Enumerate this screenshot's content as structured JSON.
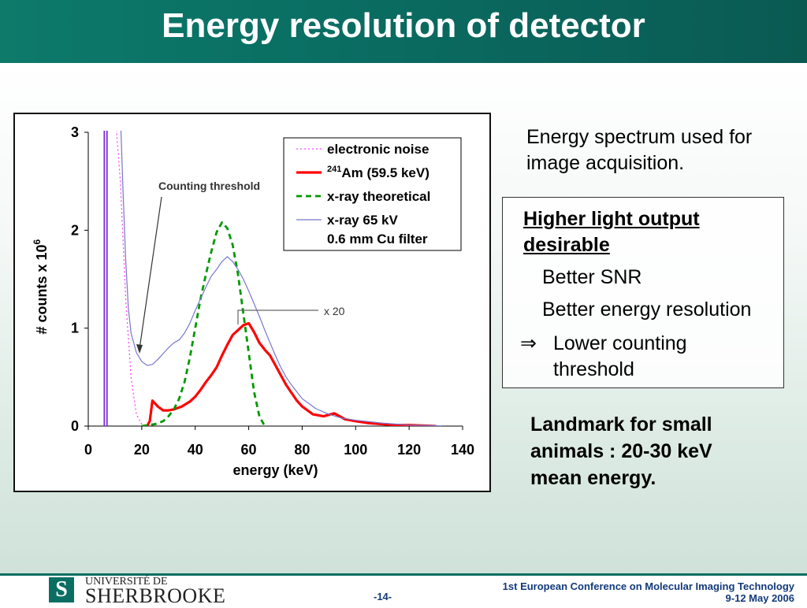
{
  "title": "Energy resolution of detector",
  "caption": "Energy spectrum used for image acquisition.",
  "box": {
    "heading": "Higher light output desirable",
    "item1": "Better SNR",
    "item2": "Better energy resolution",
    "arrow": "⇒",
    "item3a": "Lower counting",
    "item3b": "threshold"
  },
  "landmark": "Landmark for small animals : 20-30 keV mean energy.",
  "footer": {
    "logo_top": "UNIVERSITÉ DE",
    "logo_bottom": "SHERBROOKE",
    "page": "-14-",
    "conference_line1": "1st European Conference on Molecular Imaging Technology",
    "conference_line2": "9-12 May 2006"
  },
  "chart_data": {
    "type": "line",
    "xlabel": "energy (keV)",
    "ylabel": "# counts x 10",
    "ylabel_exp": "6",
    "xlim": [
      0,
      140
    ],
    "ylim": [
      0,
      3
    ],
    "x_ticks": [
      0,
      20,
      40,
      60,
      80,
      100,
      120,
      140
    ],
    "y_ticks": [
      0,
      1,
      2,
      3
    ],
    "legend_position": "top-right",
    "annotations": [
      "Counting threshold",
      "x 20"
    ],
    "series": [
      {
        "name": "electronic noise",
        "color": "#ff44ff",
        "style": "dotted",
        "x": [
          6,
          8,
          10,
          12,
          14,
          16,
          18,
          20,
          22
        ],
        "y": [
          3.2,
          3.2,
          3.2,
          2.5,
          1.3,
          0.5,
          0.12,
          0.02,
          0
        ]
      },
      {
        "name": "Am (59.5 keV)",
        "name_prefix": "241",
        "color": "#ff0000",
        "style": "solid",
        "x": [
          22,
          23,
          24,
          26,
          28,
          30,
          32,
          35,
          38,
          40,
          42,
          44,
          46,
          48,
          50,
          52,
          54,
          56,
          58,
          60,
          62,
          64,
          66,
          68,
          70,
          72,
          74,
          76,
          78,
          80,
          84,
          88,
          92,
          96,
          100,
          105,
          110,
          115,
          120,
          125,
          130
        ],
        "y": [
          0,
          0.05,
          0.26,
          0.2,
          0.16,
          0.16,
          0.17,
          0.2,
          0.25,
          0.3,
          0.37,
          0.45,
          0.52,
          0.6,
          0.72,
          0.83,
          0.93,
          0.98,
          1.03,
          1.05,
          0.96,
          0.85,
          0.78,
          0.72,
          0.62,
          0.52,
          0.42,
          0.34,
          0.26,
          0.2,
          0.12,
          0.1,
          0.13,
          0.07,
          0.05,
          0.03,
          0.02,
          0.01,
          0.01,
          0.005,
          0
        ]
      },
      {
        "name": "x-ray theoretical",
        "color": "#009900",
        "style": "dashed",
        "x": [
          20,
          25,
          28,
          30,
          32,
          34,
          36,
          38,
          40,
          42,
          44,
          46,
          48,
          50,
          52,
          54,
          56,
          58,
          60,
          62,
          64,
          66
        ],
        "y": [
          0,
          0.02,
          0.05,
          0.1,
          0.17,
          0.28,
          0.45,
          0.7,
          1.0,
          1.3,
          1.55,
          1.78,
          1.98,
          2.08,
          2.02,
          1.85,
          1.55,
          1.15,
          0.75,
          0.35,
          0.1,
          0
        ]
      },
      {
        "name": "x-ray 65 kV",
        "name_line2": "0.6 mm  Cu filter",
        "color": "#7777cc",
        "style": "solid",
        "x": [
          12,
          13,
          14,
          15,
          16,
          18,
          20,
          22,
          24,
          26,
          28,
          30,
          32,
          34,
          36,
          38,
          40,
          42,
          44,
          46,
          48,
          50,
          52,
          54,
          56,
          58,
          60,
          62,
          64,
          66,
          68,
          70,
          72,
          74,
          76,
          78,
          80,
          85,
          90,
          95,
          100,
          110,
          120,
          130,
          132
        ],
        "y": [
          3.2,
          2.4,
          1.7,
          1.2,
          0.95,
          0.75,
          0.66,
          0.62,
          0.63,
          0.68,
          0.74,
          0.8,
          0.85,
          0.88,
          0.95,
          1.05,
          1.18,
          1.3,
          1.42,
          1.53,
          1.6,
          1.68,
          1.73,
          1.68,
          1.6,
          1.5,
          1.38,
          1.25,
          1.12,
          0.98,
          0.85,
          0.72,
          0.6,
          0.5,
          0.42,
          0.35,
          0.28,
          0.18,
          0.12,
          0.08,
          0.06,
          0.03,
          0.01,
          0.005,
          0
        ]
      },
      {
        "name": "",
        "color": "#7a2bd6",
        "style": "solid",
        "x": [
          6,
          6,
          7,
          7
        ],
        "y": [
          0,
          3.2,
          3.2,
          0
        ]
      }
    ]
  }
}
